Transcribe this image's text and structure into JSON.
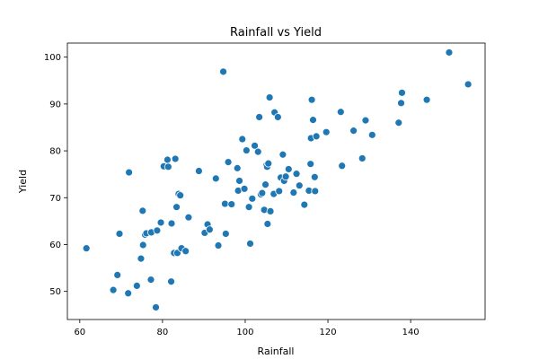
{
  "chart_data": {
    "type": "scatter",
    "title": "Rainfall vs Yield",
    "xlabel": "Rainfall",
    "ylabel": "Yield",
    "xlim": [
      57,
      158
    ],
    "ylim": [
      44,
      103
    ],
    "xticks": [
      60,
      80,
      100,
      120,
      140
    ],
    "yticks": [
      50,
      60,
      70,
      80,
      90,
      100
    ],
    "grid": false,
    "marker_color": "#1f77b4",
    "x": [
      61.6,
      68.1,
      69.1,
      69.6,
      71.7,
      71.9,
      73.8,
      74.8,
      75.2,
      75.3,
      75.8,
      76.1,
      77.2,
      77.3,
      78.4,
      78.7,
      79.6,
      80.3,
      81.2,
      81.4,
      82.1,
      82.2,
      82.8,
      83.1,
      83.4,
      83.6,
      83.9,
      84.3,
      84.6,
      85.6,
      86.3,
      88.8,
      90.2,
      90.9,
      91.4,
      92.9,
      93.5,
      94.7,
      95.1,
      95.3,
      95.9,
      96.7,
      98.1,
      98.3,
      98.6,
      99.3,
      99.8,
      100.3,
      100.9,
      101.2,
      101.7,
      102.3,
      103.1,
      103.4,
      103.8,
      104.1,
      104.6,
      104.9,
      105.1,
      105.3,
      105.4,
      105.6,
      105.9,
      106.1,
      106.9,
      107.1,
      107.9,
      108.2,
      108.6,
      109.1,
      109.4,
      109.8,
      110.5,
      111.7,
      112.4,
      113.1,
      114.3,
      115.4,
      115.8,
      115.9,
      116.1,
      116.4,
      116.8,
      116.9,
      117.2,
      119.6,
      123.1,
      123.4,
      126.2,
      128.3,
      129.1,
      130.7,
      137.1,
      137.7,
      137.9,
      143.9,
      149.3,
      153.9
    ],
    "y": [
      59.2,
      50.3,
      53.5,
      62.3,
      49.6,
      75.4,
      51.2,
      57.0,
      67.2,
      59.9,
      62.1,
      62.4,
      52.5,
      62.6,
      46.6,
      63.0,
      64.7,
      76.7,
      78.1,
      76.6,
      52.1,
      64.5,
      58.2,
      78.3,
      68.0,
      58.2,
      70.8,
      70.5,
      59.2,
      58.6,
      65.8,
      75.7,
      62.5,
      64.3,
      63.2,
      74.1,
      59.8,
      96.9,
      68.7,
      62.3,
      77.6,
      68.6,
      76.3,
      71.5,
      73.6,
      82.5,
      71.9,
      80.1,
      68.0,
      60.2,
      69.8,
      81.1,
      79.8,
      87.2,
      70.7,
      71.0,
      67.4,
      72.8,
      76.9,
      76.6,
      64.4,
      77.3,
      91.4,
      67.1,
      70.8,
      88.2,
      87.2,
      71.4,
      74.3,
      79.2,
      73.6,
      74.5,
      76.1,
      71.1,
      75.1,
      72.6,
      68.5,
      71.5,
      77.2,
      82.7,
      90.9,
      86.6,
      74.4,
      71.4,
      83.1,
      84.0,
      88.3,
      76.8,
      84.3,
      78.4,
      86.5,
      83.4,
      86.0,
      90.2,
      92.4,
      90.9,
      101.0,
      94.2
    ]
  }
}
